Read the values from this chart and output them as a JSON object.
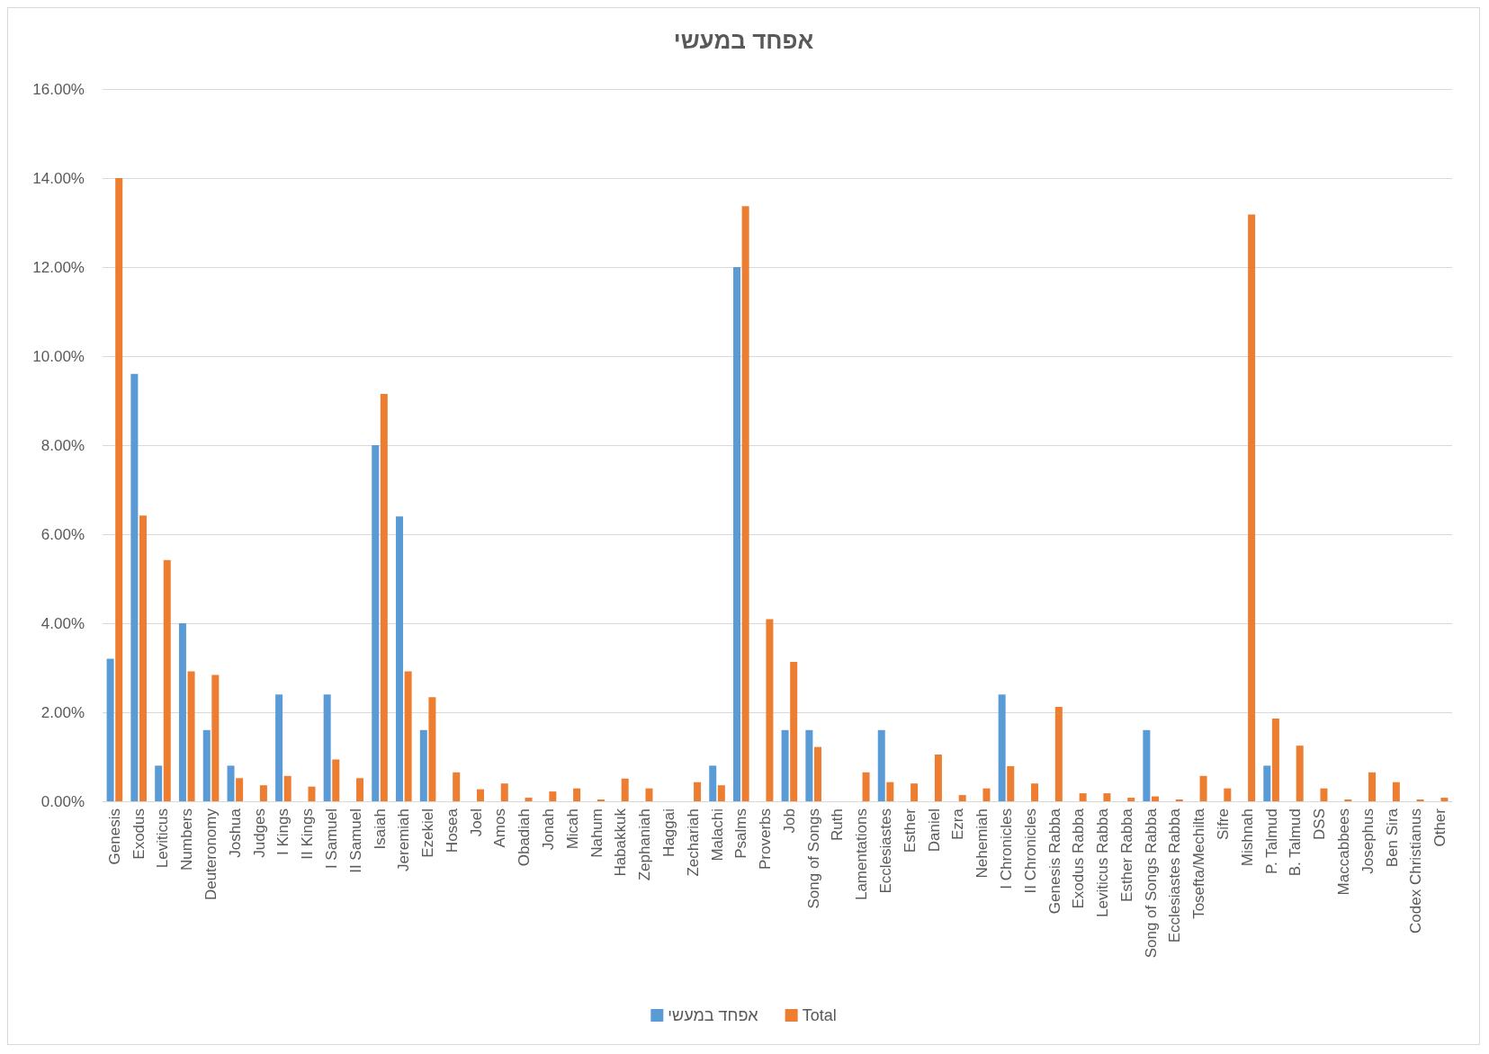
{
  "chart_data": {
    "type": "bar",
    "title": "אפחד במעשי",
    "categories": [
      "Genesis",
      "Exodus",
      "Leviticus",
      "Numbers",
      "Deuteronomy",
      "Joshua",
      "Judges",
      "I Kings",
      "II Kings",
      "I Samuel",
      "II Samuel",
      "Isaiah",
      "Jeremiah",
      "Ezekiel",
      "Hosea",
      "Joel",
      "Amos",
      "Obadiah",
      "Jonah",
      "Micah",
      "Nahum",
      "Habakkuk",
      "Zephaniah",
      "Haggai",
      "Zechariah",
      "Malachi",
      "Psalms",
      "Proverbs",
      "Job",
      "Song of Songs",
      "Ruth",
      "Lamentations",
      "Ecclesiastes",
      "Esther",
      "Daniel",
      "Ezra",
      "Nehemiah",
      "I Chronicles",
      "II Chronicles",
      "Genesis Rabba",
      "Exodus Rabba",
      "Leviticus Rabba",
      "Esther Rabba",
      "Song of Songs Rabba",
      "Ecclesiastes Rabba",
      "Tosefta/Mechilta",
      "Sifre",
      "Mishnah",
      "P. Talmud",
      "B. Talmud",
      "DSS",
      "Maccabbees",
      "Josephus",
      "Ben Sira",
      "Codex Christianus",
      "Other"
    ],
    "series": [
      {
        "name": "אפחד במעשי",
        "color": "#5b9bd5",
        "values": [
          3.2,
          9.6,
          0.8,
          4.0,
          1.6,
          0.8,
          0,
          2.4,
          0,
          2.4,
          0,
          8.0,
          6.4,
          1.6,
          0,
          0,
          0,
          0,
          0,
          0,
          0,
          0,
          0,
          0,
          0,
          0.8,
          12.0,
          0,
          1.6,
          1.6,
          0,
          0,
          1.6,
          0,
          0,
          0,
          0,
          2.4,
          0,
          0,
          0,
          0,
          0,
          1.6,
          0,
          0,
          0,
          0,
          0.8,
          0,
          0,
          0,
          0,
          0,
          0,
          0
        ]
      },
      {
        "name": "Total",
        "color": "#ed7d31",
        "values": [
          14.0,
          6.42,
          5.42,
          2.92,
          2.84,
          0.52,
          0.36,
          0.57,
          0.33,
          0.94,
          0.52,
          9.15,
          2.92,
          2.34,
          0.65,
          0.27,
          0.4,
          0.08,
          0.22,
          0.29,
          0.04,
          0.51,
          0.29,
          0,
          0.43,
          0.36,
          13.37,
          4.09,
          3.13,
          1.22,
          0,
          0.65,
          0.43,
          0.4,
          1.05,
          0.14,
          0.29,
          0.79,
          0.4,
          2.12,
          0.18,
          0.18,
          0.08,
          0.11,
          0.04,
          0.57,
          0.29,
          13.18,
          1.86,
          1.25,
          0.29,
          0.04,
          0.65,
          0.43,
          0.04,
          0.08
        ]
      }
    ],
    "ylim": [
      0,
      16
    ],
    "yticks": [
      {
        "value": 0,
        "label": "0.00%"
      },
      {
        "value": 2,
        "label": "2.00%"
      },
      {
        "value": 4,
        "label": "4.00%"
      },
      {
        "value": 6,
        "label": "6.00%"
      },
      {
        "value": 8,
        "label": "8.00%"
      },
      {
        "value": 10,
        "label": "10.00%"
      },
      {
        "value": 12,
        "label": "12.00%"
      },
      {
        "value": 14,
        "label": "14.00%"
      },
      {
        "value": 16,
        "label": "16.00%"
      }
    ],
    "grid": "y",
    "legend": "bottom"
  }
}
